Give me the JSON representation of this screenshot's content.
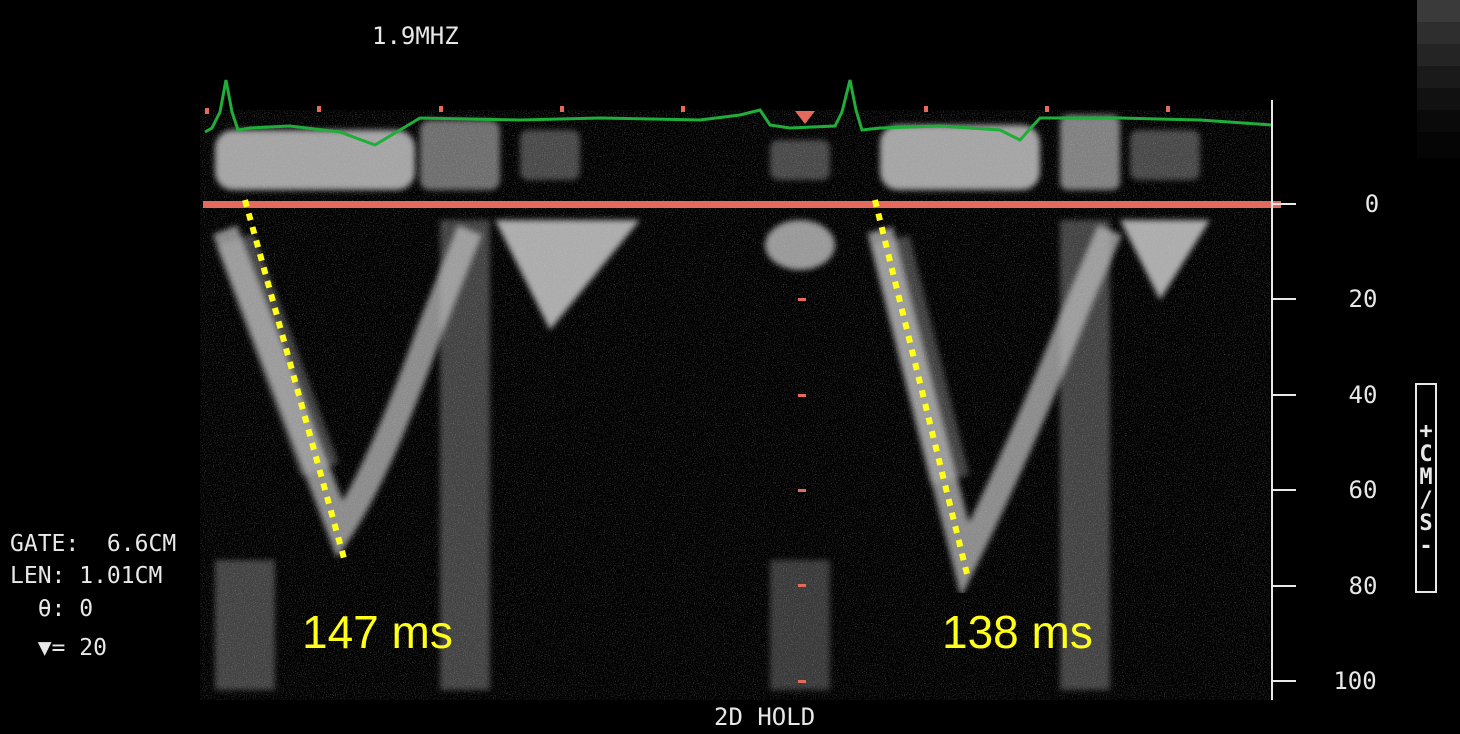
{
  "header": {
    "frequency": "1.9MHZ"
  },
  "footer": {
    "mode": "2D HOLD"
  },
  "settings": {
    "gate": "GATE:  6.6CM",
    "len": "LEN: 1.01CM",
    "theta": "  θ: 0",
    "marker": "  ▼= 20"
  },
  "scale": {
    "unit_label": "+CM/S-",
    "ticks": [
      "0",
      "20",
      "40",
      "60",
      "80",
      "100"
    ]
  },
  "annotations": {
    "left_measure": "147 ms",
    "right_measure": "138 ms"
  },
  "colors": {
    "baseline": "#e46a5e",
    "ecg": "#1fae3a",
    "measure_line": "#ffff1a",
    "grayscale_bar": [
      "#3a3a3a",
      "#2e2e2e",
      "#242424",
      "#1a1a1a",
      "#111111",
      "#0a0a0a",
      "#050505"
    ]
  }
}
